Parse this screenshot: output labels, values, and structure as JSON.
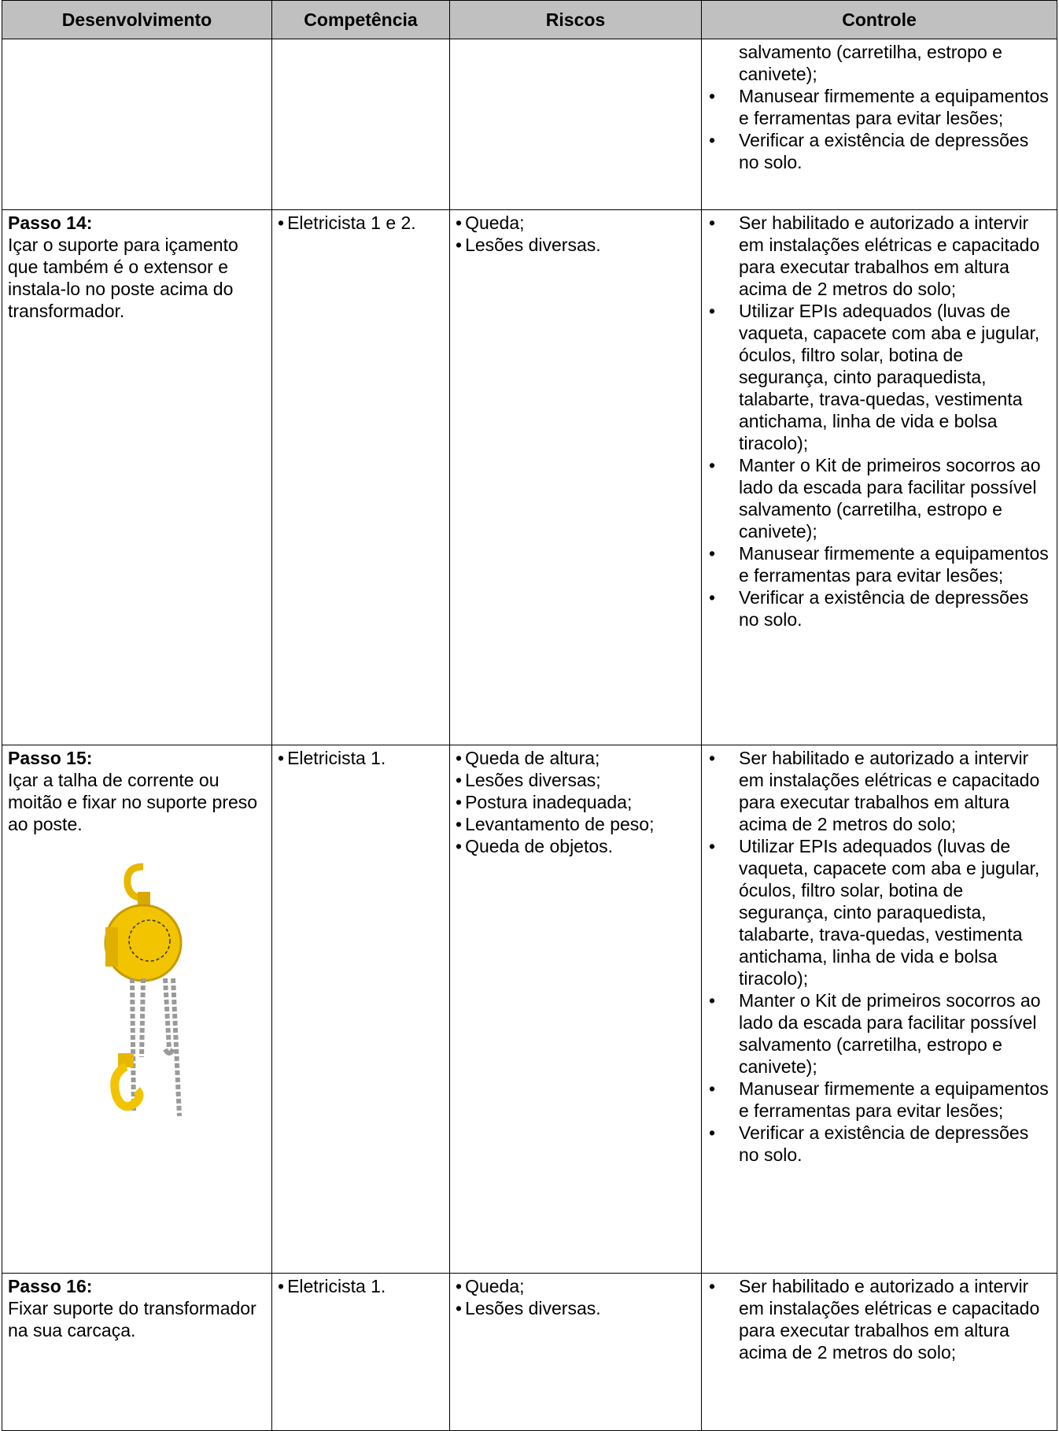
{
  "header": {
    "columns": [
      "Desenvolvimento",
      "Competência",
      "Riscos",
      "Controle"
    ]
  },
  "rows": [
    {
      "controls_continued": "salvamento (carretilha, estropo e canivete);",
      "controls": [
        "Manusear firmemente a equipamentos e ferramentas para evitar lesões;",
        "Verificar a existência de depressões no solo."
      ]
    },
    {
      "step": "Passo 14:",
      "description": "Içar o suporte para içamento que também é o extensor e instala-lo no poste acima do transformador.",
      "competence": [
        "Eletricista 1 e 2."
      ],
      "risks": [
        "Queda;",
        "Lesões diversas."
      ],
      "controls": [
        "Ser habilitado e autorizado a intervir em instalações elétricas e capacitado para executar trabalhos em altura acima de 2 metros do solo;",
        "Utilizar EPIs adequados (luvas de vaqueta, capacete com aba e jugular, óculos, filtro solar, botina de segurança, cinto paraquedista, talabarte, trava-quedas, vestimenta antichama, linha de vida e bolsa tiracolo);",
        "Manter o Kit de primeiros socorros ao lado da escada para facilitar possível salvamento (carretilha, estropo e canivete);",
        "Manusear firmemente a equipamentos e ferramentas para evitar lesões;",
        "Verificar a existência de depressões no solo."
      ]
    },
    {
      "step": "Passo 15:",
      "description": "Içar a talha de corrente ou moitão e fixar no suporte preso ao poste.",
      "competence": [
        "Eletricista 1."
      ],
      "risks": [
        "Queda de altura;",
        "Lesões diversas;",
        "Postura inadequada;",
        "Levantamento de peso;",
        "Queda de objetos."
      ],
      "controls": [
        "Ser habilitado e autorizado a intervir em instalações elétricas e capacitado para executar trabalhos em altura acima de 2 metros do solo;",
        "Utilizar EPIs adequados (luvas de vaqueta, capacete com aba e jugular, óculos, filtro solar, botina de segurança, cinto paraquedista, talabarte, trava-quedas, vestimenta antichama, linha de vida e bolsa tiracolo);",
        "Manter o Kit de primeiros socorros ao lado da escada para facilitar possível salvamento (carretilha, estropo e canivete);",
        "Manusear firmemente a equipamentos e ferramentas para evitar lesões;",
        "Verificar a existência de depressões no solo."
      ]
    },
    {
      "step": "Passo 16:",
      "description": "Fixar suporte do transformador na sua carcaça.",
      "competence": [
        "Eletricista 1."
      ],
      "risks": [
        "Queda;",
        "Lesões diversas."
      ],
      "controls": [
        "Ser habilitado e autorizado a intervir em instalações elétricas e capacitado para executar trabalhos em altura acima de 2 metros do solo;"
      ]
    }
  ]
}
